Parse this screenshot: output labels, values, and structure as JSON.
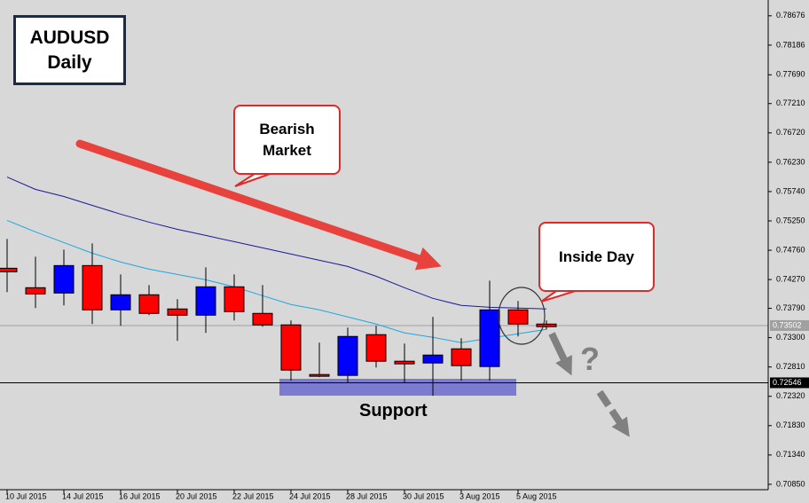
{
  "chart_data": {
    "type": "candlestick",
    "title": "AUDUSD",
    "subtitle": "Daily",
    "categories": [
      "10 Jul 2015",
      null,
      "14 Jul 2015",
      null,
      "16 Jul 2015",
      null,
      "20 Jul 2015",
      null,
      "22 Jul 2015",
      null,
      "24 Jul 2015",
      null,
      "28 Jul 2015",
      null,
      "30 Jul 2015",
      null,
      "3 Aug 2015",
      null,
      "5 Aug 2015",
      null
    ],
    "open": [
      0.74459,
      0.74134,
      0.74045,
      0.74504,
      0.73764,
      0.74016,
      0.73779,
      0.73675,
      0.74149,
      0.73705,
      0.73513,
      0.72684,
      0.72669,
      0.7335,
      0.72906,
      0.72876,
      0.73113,
      0.72817,
      0.73764,
      0.73527
    ],
    "high": [
      0.74948,
      0.74652,
      0.7477,
      0.74874,
      0.74356,
      0.74178,
      0.73942,
      0.74474,
      0.74356,
      0.74178,
      0.73587,
      0.73217,
      0.73468,
      0.73498,
      0.73202,
      0.73646,
      0.73291,
      0.74252,
      0.73912,
      0.73587
    ],
    "low": [
      0.7406,
      0.73794,
      0.73838,
      0.73527,
      0.73498,
      0.73675,
      0.73246,
      0.73379,
      0.73587,
      0.73483,
      0.7258,
      0.7264,
      0.72551,
      0.72802,
      0.72551,
      0.72329,
      0.7258,
      0.7258,
      0.7332,
      0.73439
    ],
    "close": [
      0.744,
      0.7403,
      0.74504,
      0.73764,
      0.74016,
      0.73705,
      0.73675,
      0.74149,
      0.73734,
      0.73513,
      0.72758,
      0.72654,
      0.7332,
      0.72906,
      0.72862,
      0.73009,
      0.72832,
      0.73764,
      0.73527,
      0.73483
    ],
    "up_color": "#0000ff",
    "down_color": "#ff0000",
    "lines": [
      {
        "color": "#1a1a9a",
        "values": [
          0.75983,
          0.75776,
          0.75658,
          0.7551,
          0.75362,
          0.75229,
          0.7511,
          0.75007,
          0.74903,
          0.748,
          0.74696,
          0.74593,
          0.74489,
          0.74326,
          0.74134,
          0.73956,
          0.73838,
          0.73808,
          0.73794,
          0.73779
        ]
      },
      {
        "color": "#1fa6e0",
        "values": [
          0.75258,
          0.75066,
          0.74888,
          0.74711,
          0.74563,
          0.74445,
          0.74356,
          0.74267,
          0.74149,
          0.74001,
          0.73853,
          0.73764,
          0.73646,
          0.73527,
          0.73379,
          0.73305,
          0.73217,
          0.73291,
          0.73365,
          0.73439
        ]
      }
    ],
    "hlines": [
      {
        "value": 0.73502,
        "color": "#a0a0a0"
      },
      {
        "value": 0.72546,
        "color": "#000000"
      }
    ],
    "ylim": [
      0.7076,
      0.7894
    ],
    "yticks": [
      0.78676,
      0.78186,
      {
        "value": 0.7769,
        "label": "0.77690"
      },
      {
        "value": 0.7721,
        "label": "0.77210"
      },
      {
        "value": 0.7672,
        "label": "0.76720"
      },
      {
        "value": 0.7623,
        "label": "0.76230"
      },
      {
        "value": 0.7574,
        "label": "0.75740"
      },
      {
        "value": 0.7525,
        "label": "0.75250"
      },
      {
        "value": 0.7476,
        "label": "0.74760"
      },
      {
        "value": 0.7427,
        "label": "0.74270"
      },
      {
        "value": 0.7379,
        "label": "0.73790"
      },
      {
        "value": 0.733,
        "label": "0.73300"
      },
      {
        "value": 0.7281,
        "label": "0.72810"
      },
      {
        "value": 0.7232,
        "label": "0.72320"
      },
      {
        "value": 0.7183,
        "label": "0.71830"
      },
      {
        "value": 0.7134,
        "label": "0.71340"
      },
      {
        "value": 0.7085,
        "label": "0.70850"
      }
    ],
    "annotations": {
      "bearish": "Bearish Market",
      "inside_day": "Inside Day",
      "support": "Support",
      "question": "?"
    }
  }
}
